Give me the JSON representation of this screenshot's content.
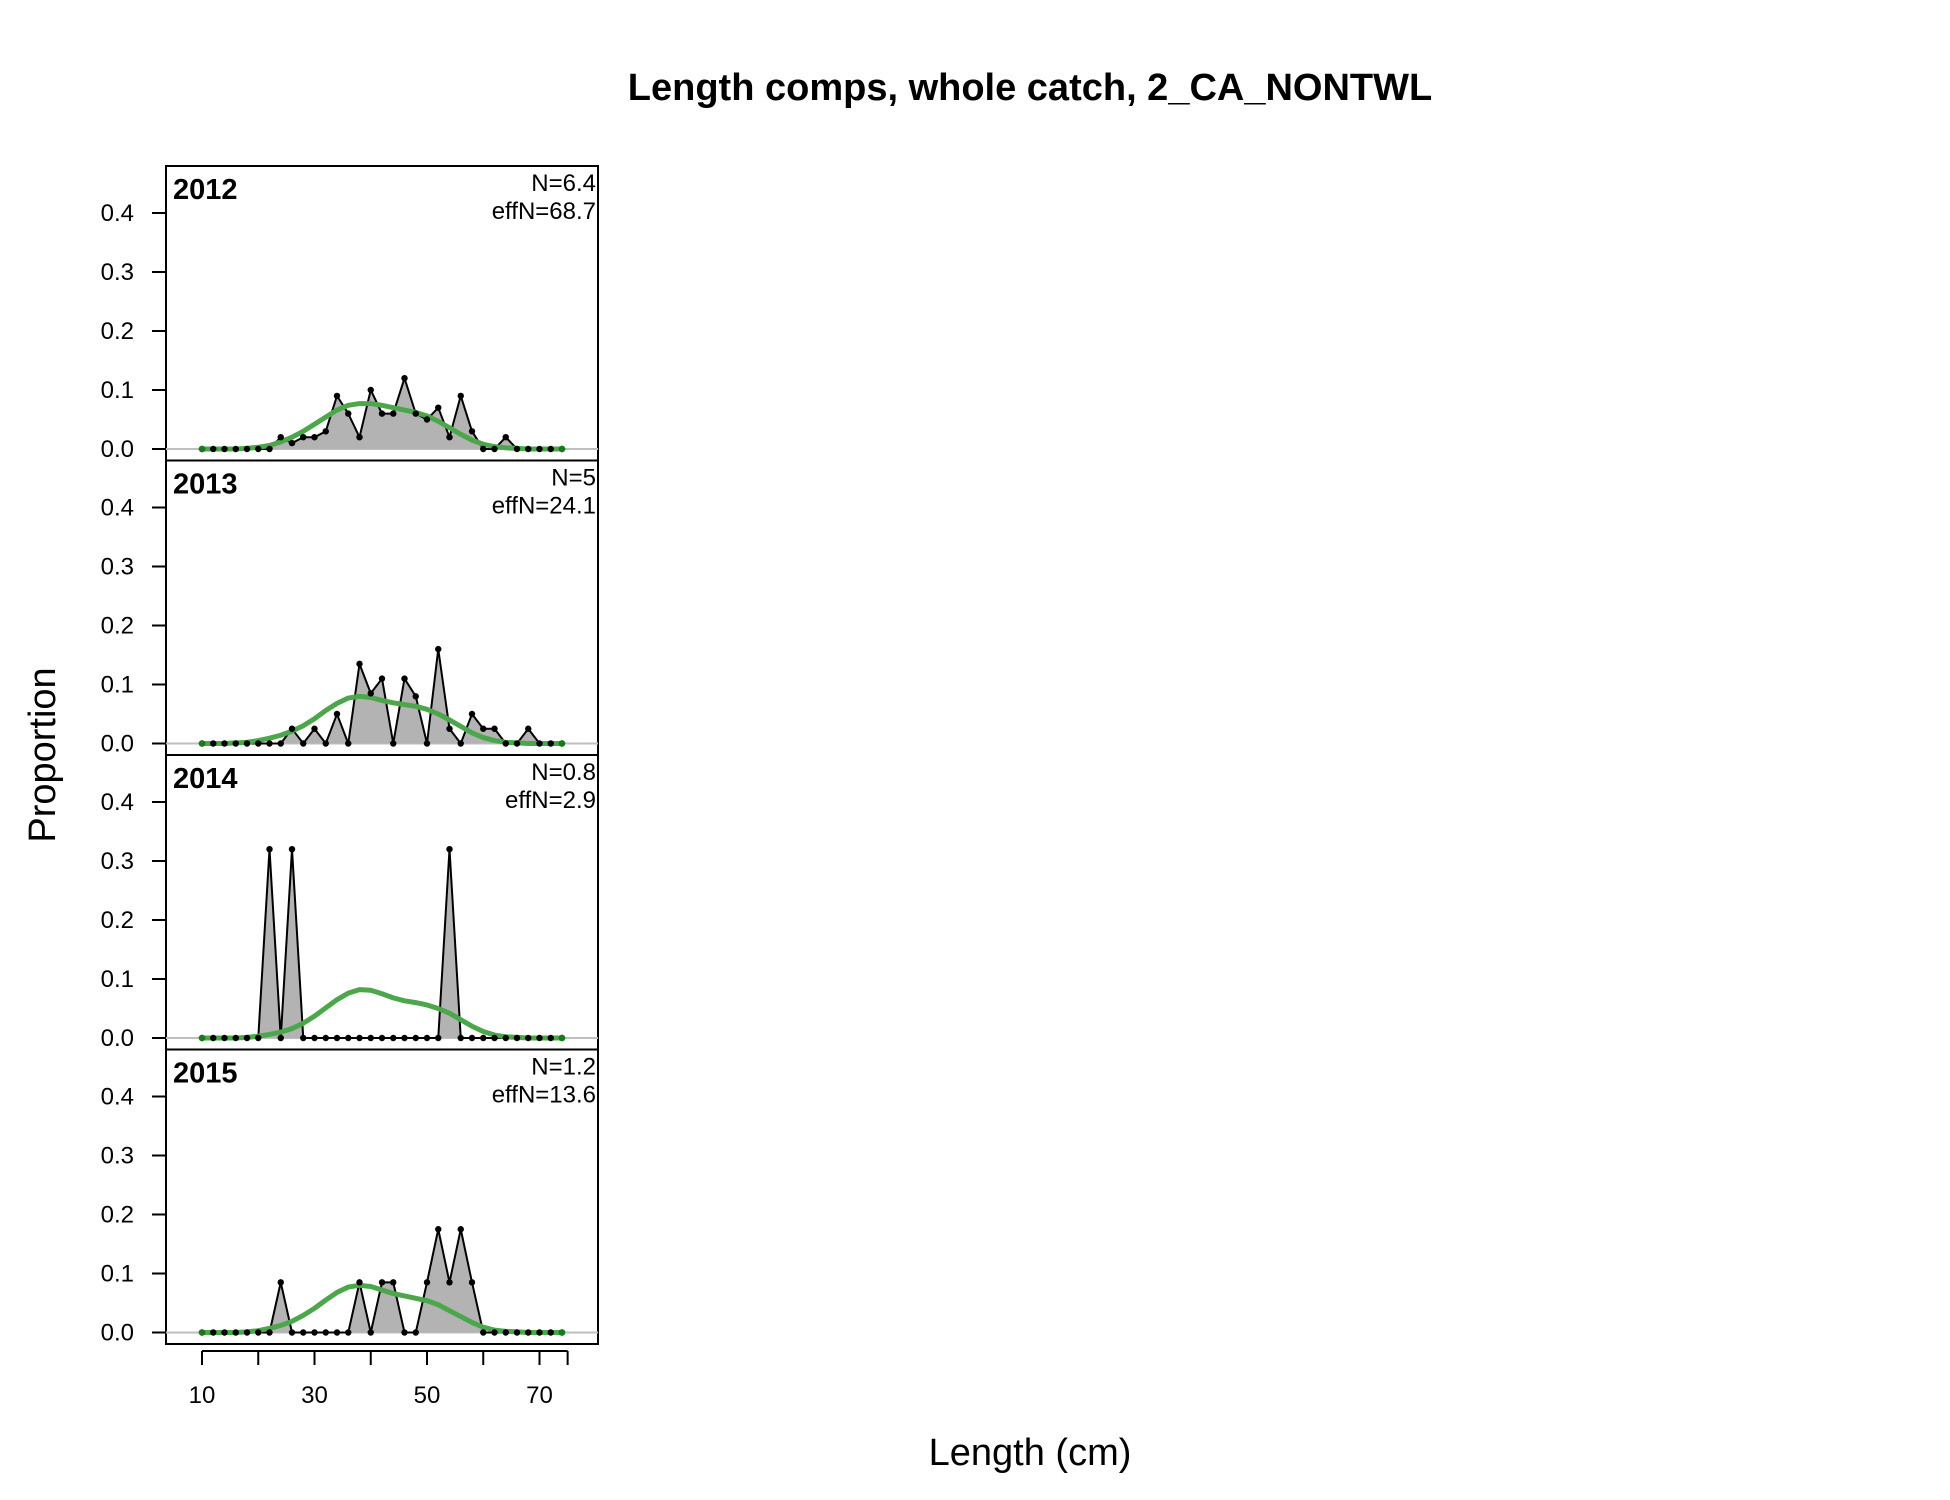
{
  "colors": {
    "observed_fill": "#b3b3b3",
    "observed_line": "#000000",
    "expected_line": "#4ca64c",
    "expected_marker": "#1a7a1a",
    "zero_line": "#bfbfbf"
  },
  "chart_data": {
    "type": "area",
    "title": "Length comps, whole catch, 2_CA_NONTWL",
    "xlabel": "Length (cm)",
    "ylabel": "Proportion",
    "xlim": [
      4,
      75
    ],
    "ylim": [
      0,
      0.45
    ],
    "x_ticks": [
      10,
      20,
      30,
      40,
      50,
      60,
      70,
      75
    ],
    "x_tick_labels": [
      10,
      30,
      50,
      70
    ],
    "y_ticks": [
      0.0,
      0.1,
      0.2,
      0.3,
      0.4
    ],
    "y_tick_labels": [
      "0.0",
      "0.1",
      "0.2",
      "0.3",
      "0.4"
    ],
    "x": [
      10,
      12,
      14,
      16,
      18,
      20,
      22,
      24,
      26,
      28,
      30,
      32,
      34,
      36,
      38,
      40,
      42,
      44,
      46,
      48,
      50,
      52,
      54,
      56,
      58,
      60,
      62,
      64,
      66,
      68,
      70,
      72,
      74
    ],
    "panels": [
      {
        "year": "2012",
        "n_label": "N=6.4",
        "effn_label": "effN=68.7",
        "observed": [
          0,
          0,
          0,
          0,
          0,
          0,
          0,
          0.02,
          0.01,
          0.02,
          0.02,
          0.03,
          0.09,
          0.06,
          0.02,
          0.1,
          0.06,
          0.06,
          0.12,
          0.06,
          0.05,
          0.07,
          0.02,
          0.09,
          0.03,
          0,
          0,
          0.02,
          0,
          0,
          0,
          0,
          0
        ],
        "expected": [
          0,
          0,
          0,
          0,
          0.001,
          0.003,
          0.006,
          0.012,
          0.02,
          0.03,
          0.042,
          0.054,
          0.066,
          0.074,
          0.077,
          0.077,
          0.074,
          0.07,
          0.066,
          0.062,
          0.056,
          0.047,
          0.036,
          0.025,
          0.015,
          0.008,
          0.004,
          0.002,
          0.001,
          0,
          0,
          0,
          0
        ]
      },
      {
        "year": "2013",
        "n_label": "N=5",
        "effn_label": "effN=24.1",
        "observed": [
          0,
          0,
          0,
          0,
          0,
          0,
          0,
          0,
          0.025,
          0,
          0.025,
          0,
          0.05,
          0,
          0.135,
          0.085,
          0.11,
          0,
          0.11,
          0.08,
          0,
          0.16,
          0.025,
          0,
          0.05,
          0.025,
          0.025,
          0,
          0,
          0.025,
          0,
          0,
          0
        ],
        "expected": [
          0,
          0,
          0,
          0.001,
          0.002,
          0.005,
          0.009,
          0.014,
          0.021,
          0.03,
          0.042,
          0.056,
          0.068,
          0.077,
          0.08,
          0.078,
          0.073,
          0.069,
          0.066,
          0.063,
          0.058,
          0.05,
          0.04,
          0.029,
          0.018,
          0.01,
          0.005,
          0.002,
          0.001,
          0,
          0,
          0,
          0
        ]
      },
      {
        "year": "2014",
        "n_label": "N=0.8",
        "effn_label": "effN=2.9",
        "observed": [
          0,
          0,
          0,
          0,
          0,
          0,
          0.32,
          0,
          0.32,
          0,
          0,
          0,
          0,
          0,
          0,
          0,
          0,
          0,
          0,
          0,
          0,
          0,
          0.32,
          0,
          0,
          0,
          0,
          0,
          0,
          0,
          0,
          0,
          0
        ],
        "expected": [
          0,
          0,
          0,
          0,
          0.001,
          0.003,
          0.006,
          0.01,
          0.016,
          0.025,
          0.037,
          0.051,
          0.065,
          0.076,
          0.082,
          0.081,
          0.075,
          0.068,
          0.063,
          0.06,
          0.056,
          0.05,
          0.042,
          0.031,
          0.02,
          0.011,
          0.005,
          0.002,
          0.001,
          0,
          0,
          0,
          0
        ]
      },
      {
        "year": "2015",
        "n_label": "N=1.2",
        "effn_label": "effN=13.6",
        "observed": [
          0,
          0,
          0,
          0,
          0,
          0,
          0,
          0.085,
          0,
          0,
          0,
          0,
          0,
          0,
          0.085,
          0,
          0.085,
          0.085,
          0,
          0,
          0.085,
          0.175,
          0.085,
          0.175,
          0.085,
          0,
          0,
          0,
          0,
          0,
          0,
          0,
          0
        ],
        "expected": [
          0,
          0,
          0,
          0,
          0.001,
          0.003,
          0.007,
          0.012,
          0.019,
          0.029,
          0.041,
          0.055,
          0.068,
          0.077,
          0.08,
          0.078,
          0.072,
          0.066,
          0.062,
          0.058,
          0.054,
          0.047,
          0.037,
          0.027,
          0.017,
          0.009,
          0.004,
          0.002,
          0.001,
          0,
          0,
          0,
          0
        ]
      }
    ]
  }
}
